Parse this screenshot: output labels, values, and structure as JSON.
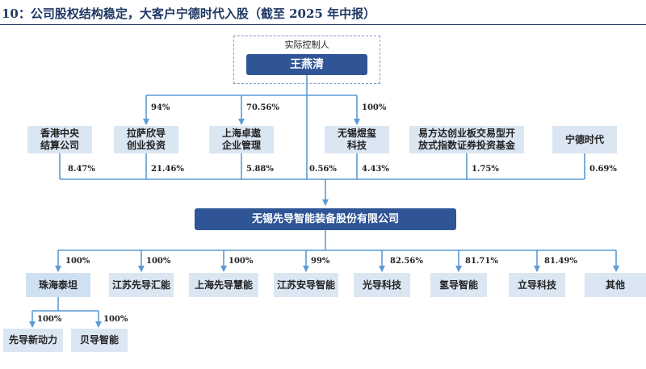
{
  "title": "10：公司股权结构稳定，大客户宁德时代入股（截至 2025 年中报）",
  "controller": {
    "label": "实际控制人",
    "name": "王燕清"
  },
  "shareholders": [
    {
      "id": "hkscc",
      "line1": "香港中央",
      "line2": "结算公司",
      "pct": "8.47%"
    },
    {
      "id": "lhsax",
      "line1": "拉萨欣导",
      "line2": "创业投资",
      "pct": "21.46%",
      "ctrl_pct": "94%"
    },
    {
      "id": "shzy",
      "line1": "上海卓遨",
      "line2": "企业管理",
      "pct": "5.88%",
      "ctrl_pct": "70.56%"
    },
    {
      "id": "direct",
      "pct": "0.56%"
    },
    {
      "id": "wxyh",
      "line1": "无锡煜玺",
      "line2": "科技",
      "pct": "4.43%",
      "ctrl_pct": "100%"
    },
    {
      "id": "efund",
      "line1": "易方达创业板交易型开",
      "line2": "放式指数证券投资基金",
      "pct": "1.75%"
    },
    {
      "id": "catl",
      "line1": "宁德时代",
      "line2": "",
      "pct": "0.69%"
    }
  ],
  "company": "无锡先导智能装备股份有限公司",
  "subsidiaries": [
    {
      "id": "zhtt",
      "name": "珠海泰坦",
      "pct": "100%"
    },
    {
      "id": "jsxdhn",
      "name": "江苏先导汇能",
      "pct": "100%"
    },
    {
      "id": "shxdhn",
      "name": "上海先导慧能",
      "pct": "100%"
    },
    {
      "id": "jsazn",
      "name": "江苏安导智能",
      "pct": "99%"
    },
    {
      "id": "gdkj",
      "name": "光导科技",
      "pct": "82.56%"
    },
    {
      "id": "qdzn",
      "name": "氢导智能",
      "pct": "81.71%"
    },
    {
      "id": "ldkj",
      "name": "立导科技",
      "pct": "81.49%"
    },
    {
      "id": "other",
      "name": "其他",
      "pct": ""
    }
  ],
  "sub_subsidiaries": [
    {
      "id": "xdxdl",
      "name": "先导新动力",
      "pct": "100%"
    },
    {
      "id": "bdzn",
      "name": "贝导智能",
      "pct": "100%"
    }
  ],
  "colors": {
    "dark_box": "#2f5597",
    "light_box": "#dbe6f3",
    "line": "#5b9bd5",
    "title": "#1f3864"
  }
}
